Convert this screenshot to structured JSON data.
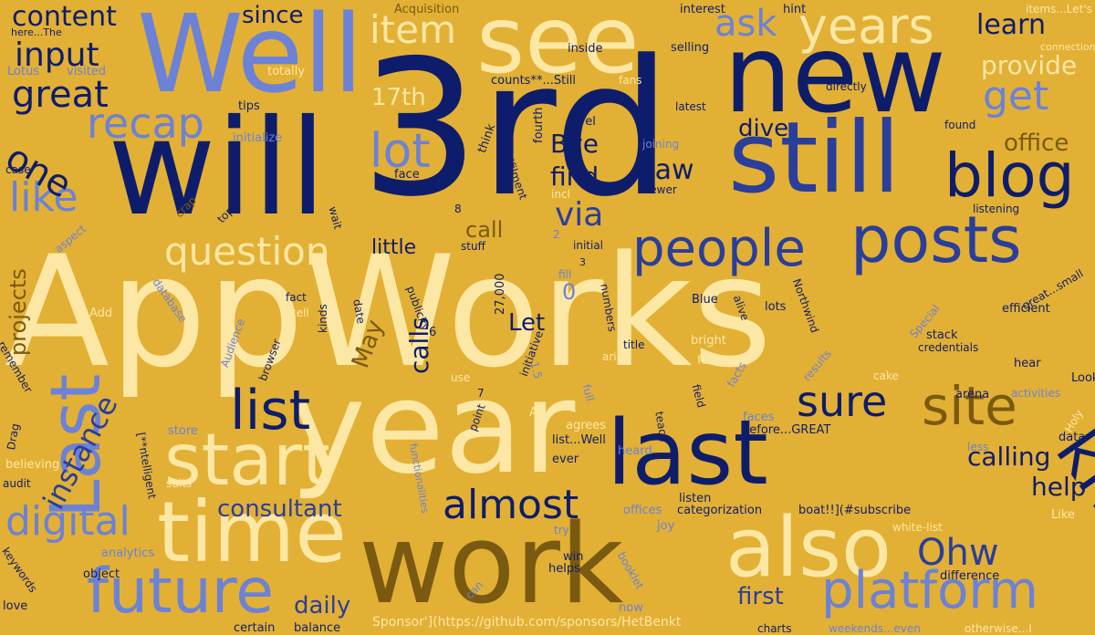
{
  "words": [
    {
      "text": "AppWorks",
      "color": "#fde7a4"
    },
    {
      "text": "3rd",
      "color": "#0e1d6b"
    },
    {
      "text": "year",
      "color": "#fde7a4"
    },
    {
      "text": "will",
      "color": "#0e1d6b"
    },
    {
      "text": "Well",
      "color": "#6b82d6"
    },
    {
      "text": "see",
      "color": "#fde7a4"
    },
    {
      "text": "new",
      "color": "#0e1d6b"
    },
    {
      "text": "still",
      "color": "#2a3e9b"
    },
    {
      "text": "work",
      "color": "#7a5a10"
    },
    {
      "text": "last",
      "color": "#0e1d6b"
    },
    {
      "text": "time",
      "color": "#fde7a4"
    },
    {
      "text": "also",
      "color": "#fde7a4"
    },
    {
      "text": "posts",
      "color": "#2a3e9b"
    },
    {
      "text": "start",
      "color": "#fde7a4"
    },
    {
      "text": "Last",
      "color": "#6b82d6"
    },
    {
      "text": "future",
      "color": "#6b82d6"
    },
    {
      "text": "know",
      "color": "#0e1d6b"
    },
    {
      "text": "platform",
      "color": "#6b82d6"
    },
    {
      "text": "blog",
      "color": "#0e1d6b"
    },
    {
      "text": "people",
      "color": "#2a3e9b"
    },
    {
      "text": "list",
      "color": "#0e1d6b"
    },
    {
      "text": "years",
      "color": "#fde7a4"
    },
    {
      "text": "site",
      "color": "#7a5a10"
    },
    {
      "text": "lot",
      "color": "#6b82d6"
    },
    {
      "text": "recap",
      "color": "#6b82d6"
    },
    {
      "text": "sure",
      "color": "#0e1d6b"
    },
    {
      "text": "almost",
      "color": "#0e1d6b"
    },
    {
      "text": "question",
      "color": "#fde7a4"
    },
    {
      "text": "like",
      "color": "#6b82d6"
    },
    {
      "text": "one",
      "color": "#0e1d6b"
    },
    {
      "text": "great",
      "color": "#0e1d6b"
    },
    {
      "text": "input",
      "color": "#0e1d6b"
    },
    {
      "text": "digital",
      "color": "#6b82d6"
    },
    {
      "text": "item",
      "color": "#fde7a4"
    },
    {
      "text": "ask",
      "color": "#6b82d6"
    },
    {
      "text": "get",
      "color": "#6b82d6"
    },
    {
      "text": "content",
      "color": "#0e1d6b"
    },
    {
      "text": "Ohw",
      "color": "#2a3e9b"
    },
    {
      "text": "instance",
      "color": "#2a3e9b"
    },
    {
      "text": "consultant",
      "color": "#2a3e9b"
    },
    {
      "text": "via",
      "color": "#2a3e9b"
    },
    {
      "text": "since",
      "color": "#0e1d6b"
    },
    {
      "text": "learn",
      "color": "#0e1d6b"
    },
    {
      "text": "provide",
      "color": "#fde7a4"
    },
    {
      "text": "office",
      "color": "#7a5a10"
    },
    {
      "text": "calling",
      "color": "#0e1d6b"
    },
    {
      "text": "help",
      "color": "#0e1d6b"
    },
    {
      "text": "daily",
      "color": "#2a3e9b"
    },
    {
      "text": "first",
      "color": "#2a3e9b"
    },
    {
      "text": "little",
      "color": "#0e1d6b"
    },
    {
      "text": "call",
      "color": "#7a5a10"
    },
    {
      "text": "calls",
      "color": "#0e1d6b"
    },
    {
      "text": "Let",
      "color": "#0e1d6b"
    },
    {
      "text": "saw",
      "color": "#0e1d6b"
    },
    {
      "text": "find",
      "color": "#0e1d6b"
    },
    {
      "text": "Bye",
      "color": "#0e1d6b"
    },
    {
      "text": "dive",
      "color": "#0e1d6b"
    },
    {
      "text": "17th",
      "color": "#fde7a4"
    },
    {
      "text": "May",
      "color": "#7a5a10"
    },
    {
      "text": "projects",
      "color": "#7a5a10"
    },
    {
      "text": "0",
      "color": "#6b82d6"
    },
    {
      "text": "Acquisition",
      "color": "#7a5a10"
    },
    {
      "text": "interest",
      "color": "#0e1d6b"
    },
    {
      "text": "hint",
      "color": "#0e1d6b"
    },
    {
      "text": "items...Let's",
      "color": "#fde7a4"
    },
    {
      "text": "here...The",
      "color": "#0e1d6b"
    },
    {
      "text": "connection",
      "color": "#fde7a4"
    },
    {
      "text": "inside",
      "color": "#0e1d6b"
    },
    {
      "text": "selling",
      "color": "#0e1d6b"
    },
    {
      "text": "Lotus",
      "color": "#6b82d6"
    },
    {
      "text": "visited",
      "color": "#6b82d6"
    },
    {
      "text": "totally",
      "color": "#fde7a4"
    },
    {
      "text": "counts**...Still",
      "color": "#0e1d6b"
    },
    {
      "text": "fans",
      "color": "#fde7a4"
    },
    {
      "text": "directly",
      "color": "#0e1d6b"
    },
    {
      "text": "tips",
      "color": "#0e1d6b"
    },
    {
      "text": "level",
      "color": "#0e1d6b"
    },
    {
      "text": "latest",
      "color": "#0e1d6b"
    },
    {
      "text": "found",
      "color": "#0e1d6b"
    },
    {
      "text": "think",
      "color": "#0e1d6b"
    },
    {
      "text": "fourth",
      "color": "#0e1d6b"
    },
    {
      "text": "initialize",
      "color": "#6b82d6"
    },
    {
      "text": "joining",
      "color": "#6b82d6"
    },
    {
      "text": "fulfilment",
      "color": "#0e1d6b"
    },
    {
      "text": "case",
      "color": "#0e1d6b"
    },
    {
      "text": "face",
      "color": "#0e1d6b"
    },
    {
      "text": "incl",
      "color": "#fde7a4"
    },
    {
      "text": "Fewer",
      "color": "#0e1d6b"
    },
    {
      "text": "listening",
      "color": "#0e1d6b"
    },
    {
      "text": "top",
      "color": "#0e1d6b"
    },
    {
      "text": "crap",
      "color": "#7a5a10"
    },
    {
      "text": "wait",
      "color": "#0e1d6b"
    },
    {
      "text": "8",
      "color": "#0e1d6b"
    },
    {
      "text": "stuff",
      "color": "#0e1d6b"
    },
    {
      "text": "2",
      "color": "#6b82d6"
    },
    {
      "text": "initial",
      "color": "#0e1d6b"
    },
    {
      "text": "aspect",
      "color": "#6b82d6"
    },
    {
      "text": "3",
      "color": "#0e1d6b"
    },
    {
      "text": "fill",
      "color": "#6b82d6"
    },
    {
      "text": "27,000",
      "color": "#0e1d6b"
    },
    {
      "text": "fact",
      "color": "#0e1d6b"
    },
    {
      "text": "tell",
      "color": "#fde7a4"
    },
    {
      "text": "publicity",
      "color": "#0e1d6b"
    },
    {
      "text": "numbers",
      "color": "#0e1d6b"
    },
    {
      "text": "Blue",
      "color": "#0e1d6b"
    },
    {
      "text": "alive",
      "color": "#0e1d6b"
    },
    {
      "text": "lots",
      "color": "#0e1d6b"
    },
    {
      "text": "Northwind",
      "color": "#0e1d6b"
    },
    {
      "text": "database",
      "color": "#6b82d6"
    },
    {
      "text": "Add",
      "color": "#fde7a4"
    },
    {
      "text": "kinds",
      "color": "#0e1d6b"
    },
    {
      "text": "date",
      "color": "#0e1d6b"
    },
    {
      "text": "6",
      "color": "#0e1d6b"
    },
    {
      "text": "bright",
      "color": "#fde7a4"
    },
    {
      "text": "Special",
      "color": "#6b82d6"
    },
    {
      "text": "efficient",
      "color": "#0e1d6b"
    },
    {
      "text": "great...small",
      "color": "#0e1d6b"
    },
    {
      "text": "remember",
      "color": "#0e1d6b"
    },
    {
      "text": "Audience",
      "color": "#6b82d6"
    },
    {
      "text": "browser",
      "color": "#0e1d6b"
    },
    {
      "text": "initiative",
      "color": "#0e1d6b"
    },
    {
      "text": "title",
      "color": "#0e1d6b"
    },
    {
      "text": "arise",
      "color": "#fde7a4"
    },
    {
      "text": "far",
      "color": "#fde7a4"
    },
    {
      "text": "stack",
      "color": "#0e1d6b"
    },
    {
      "text": "credentials",
      "color": "#0e1d6b"
    },
    {
      "text": "results",
      "color": "#6b82d6"
    },
    {
      "text": "facts",
      "color": "#6b82d6"
    },
    {
      "text": "hear",
      "color": "#0e1d6b"
    },
    {
      "text": "Looks",
      "color": "#0e1d6b"
    },
    {
      "text": "cake",
      "color": "#fde7a4"
    },
    {
      "text": "Drag",
      "color": "#0e1d6b"
    },
    {
      "text": "use",
      "color": "#fde7a4"
    },
    {
      "text": "1.5",
      "color": "#6b82d6"
    },
    {
      "text": "7",
      "color": "#0e1d6b"
    },
    {
      "text": "full",
      "color": "#6b82d6"
    },
    {
      "text": "field",
      "color": "#0e1d6b"
    },
    {
      "text": "arena",
      "color": "#0e1d6b"
    },
    {
      "text": "activities",
      "color": "#6b82d6"
    },
    {
      "text": "Holy",
      "color": "#fde7a4"
    },
    {
      "text": "point",
      "color": "#0e1d6b"
    },
    {
      "text": "Also",
      "color": "#fde7a4"
    },
    {
      "text": "agrees",
      "color": "#fde7a4"
    },
    {
      "text": "faces",
      "color": "#6b82d6"
    },
    {
      "text": "before...GREAT",
      "color": "#0e1d6b"
    },
    {
      "text": "teach",
      "color": "#0e1d6b"
    },
    {
      "text": "store",
      "color": "#6b82d6"
    },
    {
      "text": "list...Well",
      "color": "#0e1d6b"
    },
    {
      "text": "data",
      "color": "#0e1d6b"
    },
    {
      "text": "less",
      "color": "#6b82d6"
    },
    {
      "text": "believing",
      "color": "#fde7a4"
    },
    {
      "text": "[**ntelligent",
      "color": "#0e1d6b"
    },
    {
      "text": "heard",
      "color": "#6b82d6"
    },
    {
      "text": "ever",
      "color": "#0e1d6b"
    },
    {
      "text": "audit",
      "color": "#0e1d6b"
    },
    {
      "text": "suits",
      "color": "#fde7a4"
    },
    {
      "text": "functionalities",
      "color": "#6b82d6"
    },
    {
      "text": "offices",
      "color": "#6b82d6"
    },
    {
      "text": "listen",
      "color": "#0e1d6b"
    },
    {
      "text": "categorization",
      "color": "#0e1d6b"
    },
    {
      "text": "boat!!](#subscribe",
      "color": "#0e1d6b"
    },
    {
      "text": "joy",
      "color": "#6b82d6"
    },
    {
      "text": "white-list",
      "color": "#fde7a4"
    },
    {
      "text": "Like",
      "color": "#fde7a4"
    },
    {
      "text": "try",
      "color": "#6b82d6"
    },
    {
      "text": "analytics",
      "color": "#6b82d6"
    },
    {
      "text": "keywords",
      "color": "#0e1d6b"
    },
    {
      "text": "object",
      "color": "#0e1d6b"
    },
    {
      "text": "win",
      "color": "#0e1d6b"
    },
    {
      "text": "helps",
      "color": "#0e1d6b"
    },
    {
      "text": "booklet",
      "color": "#6b82d6"
    },
    {
      "text": "difference",
      "color": "#0e1d6b"
    },
    {
      "text": "love",
      "color": "#0e1d6b"
    },
    {
      "text": "can",
      "color": "#6b82d6"
    },
    {
      "text": "now",
      "color": "#6b82d6"
    },
    {
      "text": "certain",
      "color": "#0e1d6b"
    },
    {
      "text": "balance",
      "color": "#0e1d6b"
    },
    {
      "text": "Sponsor'](https://github.com/sponsors/HetBenkt",
      "color": "#fde7a4"
    },
    {
      "text": "charts",
      "color": "#0e1d6b"
    },
    {
      "text": "weekends...even",
      "color": "#6b82d6"
    },
    {
      "text": "otherwise...I",
      "color": "#fde7a4"
    }
  ]
}
